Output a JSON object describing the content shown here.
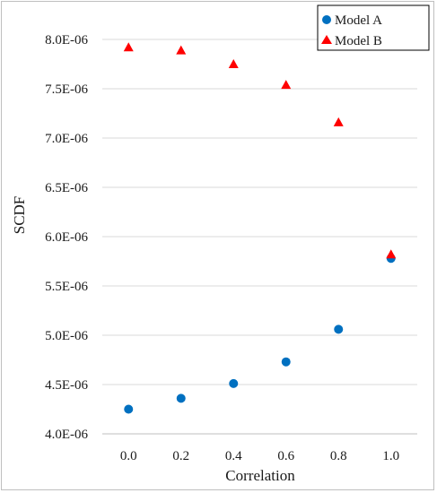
{
  "chart_data": {
    "type": "scatter",
    "title": "",
    "xlabel": "Correlation",
    "ylabel": "SCDF",
    "x_ticks": [
      "0.0",
      "0.2",
      "0.4",
      "0.6",
      "0.8",
      "1.0"
    ],
    "y_ticks": [
      "4.0E-06",
      "4.5E-06",
      "5.0E-06",
      "5.5E-06",
      "6.0E-06",
      "6.5E-06",
      "7.0E-06",
      "7.5E-06",
      "8.0E-06"
    ],
    "xlim": [
      -0.1,
      1.1
    ],
    "ylim": [
      4e-06,
      8e-06
    ],
    "grid": "horizontal",
    "legend_position": "top-right",
    "x": [
      0.0,
      0.2,
      0.4,
      0.6,
      0.8,
      1.0
    ],
    "series": [
      {
        "name": "Model A",
        "marker": "circle",
        "color": "#0070c0",
        "values": [
          4.25e-06,
          4.36e-06,
          4.51e-06,
          4.73e-06,
          5.06e-06,
          5.78e-06
        ]
      },
      {
        "name": "Model B",
        "marker": "triangle",
        "color": "#ff0000",
        "values": [
          7.92e-06,
          7.89e-06,
          7.75e-06,
          7.54e-06,
          7.16e-06,
          5.82e-06
        ]
      }
    ]
  }
}
